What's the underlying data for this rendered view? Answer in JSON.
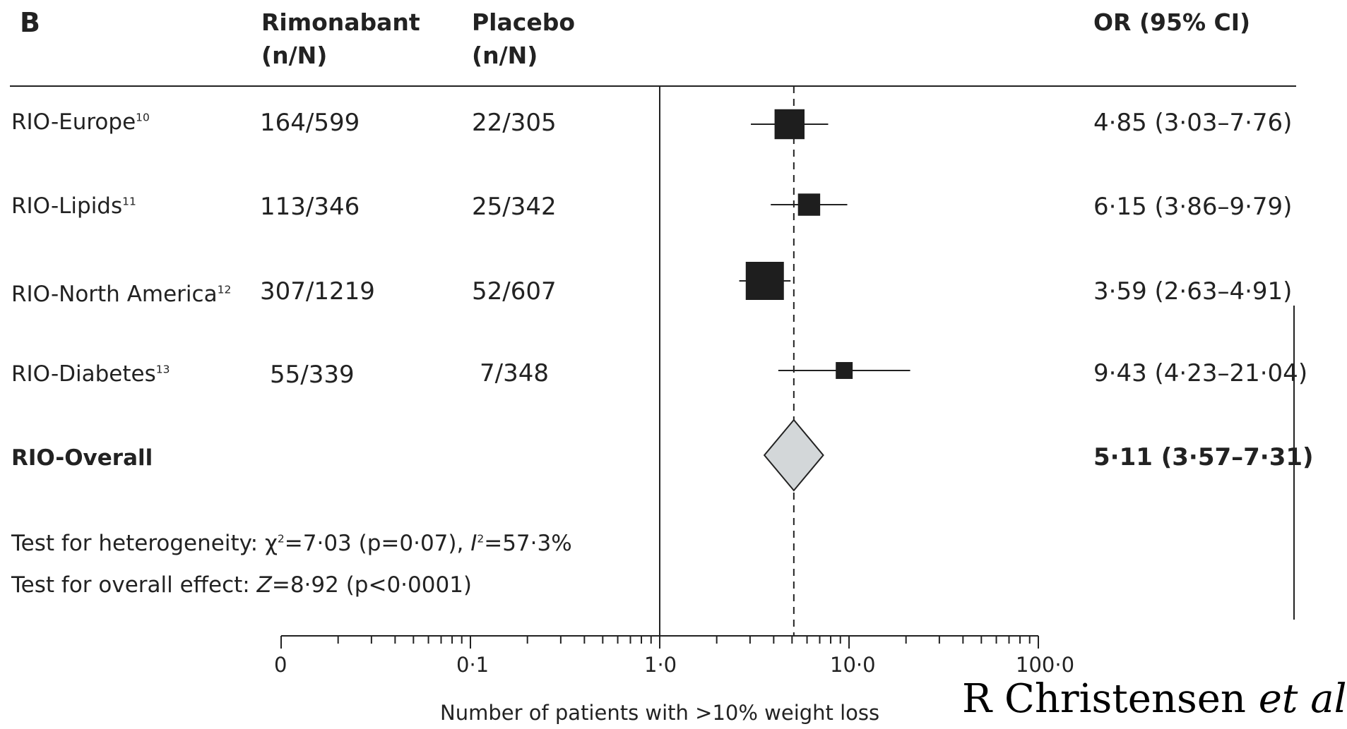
{
  "panel_label": "B",
  "headers": {
    "rimonabant": [
      "Rimonabant",
      "(n/N)"
    ],
    "placebo": [
      "Placebo",
      "(n/N)"
    ],
    "or": "OR (95% CI)"
  },
  "studies": [
    {
      "name": "RIO-Europe",
      "ref": "10",
      "rimonabant": "164/599",
      "placebo": "22/305",
      "or_text": "4·85 (3·03–7·76)"
    },
    {
      "name": "RIO-Lipids",
      "ref": "11",
      "rimonabant": "113/346",
      "placebo": "25/342",
      "or_text": "6·15 (3·86–9·79)"
    },
    {
      "name": "RIO-North America",
      "ref": "12",
      "rimonabant": "307/1219",
      "placebo": "52/607",
      "or_text": "3·59 (2·63–4·91)"
    },
    {
      "name": "RIO-Diabetes",
      "ref": "13",
      "rimonabant": "55/339",
      "placebo": "7/348",
      "or_text": "9·43 (4·23–21·04)"
    }
  ],
  "overall": {
    "name": "RIO-Overall",
    "or_text": "5·11 (3·57–7·31)"
  },
  "tests": {
    "heterogeneity": {
      "prefix": "Test for heterogeneity: χ",
      "sup1": "2",
      "mid": "=7·03 (p=0·07), ",
      "i": "I",
      "sup2": "2",
      "suffix": "=57·3%"
    },
    "overall_effect": {
      "prefix": "Test for overall effect: ",
      "z": "Z",
      "suffix": "=8·92 (p<0·0001)"
    }
  },
  "axis": {
    "tick_labels": [
      "0",
      "0·1",
      "1·0",
      "10·0",
      "100·0"
    ],
    "xlabel": "Number of patients with >10% weight loss"
  },
  "credit": {
    "text": "R Christensen ",
    "italic": "et al"
  },
  "chart_data": {
    "type": "forest",
    "x_scale": "log",
    "xlim": [
      0.01,
      100
    ],
    "xlabel": "Number of patients with >10% weight loss",
    "tick_labels": [
      "0",
      "0·1",
      "1·0",
      "10·0",
      "100·0"
    ],
    "reference_line": 1,
    "pooled_line": 5.11,
    "estimates": [
      {
        "study": "RIO-Europe",
        "or": 4.85,
        "lo": 3.03,
        "hi": 7.76,
        "weight": 0.56
      },
      {
        "study": "RIO-Lipids",
        "or": 6.15,
        "lo": 3.86,
        "hi": 9.79,
        "weight": 0.26
      },
      {
        "study": "RIO-North America",
        "or": 3.59,
        "lo": 2.63,
        "hi": 4.91,
        "weight": 1.0
      },
      {
        "study": "RIO-Diabetes",
        "or": 9.43,
        "lo": 4.23,
        "hi": 21.04,
        "weight": 0.12
      }
    ],
    "overall": {
      "or": 5.11,
      "lo": 3.57,
      "hi": 7.31
    }
  }
}
